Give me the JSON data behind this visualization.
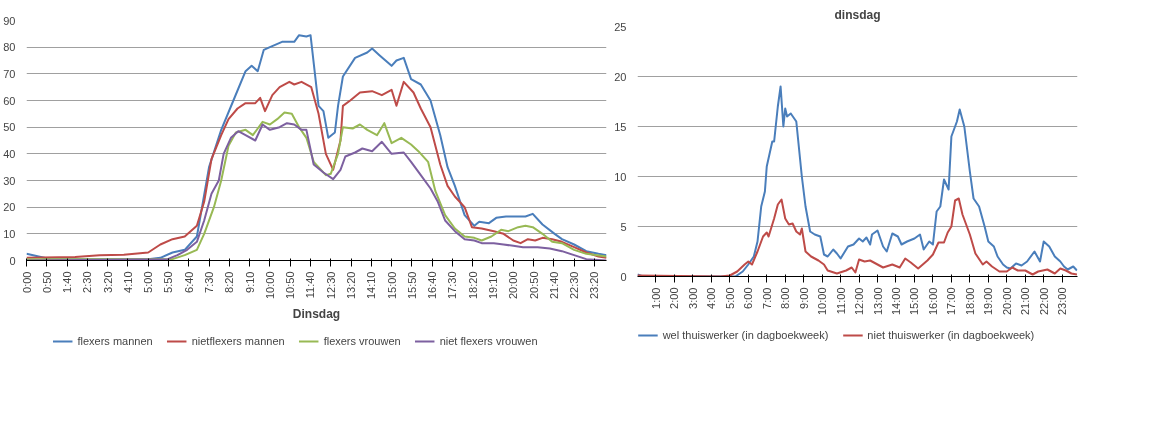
{
  "chart_data": [
    {
      "type": "line",
      "xlabel": "Dinsdag",
      "legend": "bottom",
      "grid": "y",
      "marker": "none",
      "line_style": "solid",
      "xlim": [
        0,
        23.83
      ],
      "ylim": [
        0,
        90
      ],
      "yticks": [
        0,
        10,
        20,
        30,
        40,
        50,
        60,
        70,
        80,
        90
      ],
      "xticks": [
        {
          "value": 0,
          "label": "0:00"
        },
        {
          "value": 0.8333,
          "label": "0:50"
        },
        {
          "value": 1.6667,
          "label": "1:40"
        },
        {
          "value": 2.5,
          "label": "2:30"
        },
        {
          "value": 3.3333,
          "label": "3:20"
        },
        {
          "value": 4.1667,
          "label": "4:10"
        },
        {
          "value": 5,
          "label": "5:00"
        },
        {
          "value": 5.8333,
          "label": "5:50"
        },
        {
          "value": 6.6667,
          "label": "6:40"
        },
        {
          "value": 7.5,
          "label": "7:30"
        },
        {
          "value": 8.3333,
          "label": "8:20"
        },
        {
          "value": 9.1667,
          "label": "9:10"
        },
        {
          "value": 10,
          "label": "10:00"
        },
        {
          "value": 10.8333,
          "label": "10:50"
        },
        {
          "value": 11.6667,
          "label": "11:40"
        },
        {
          "value": 12.5,
          "label": "12:30"
        },
        {
          "value": 13.3333,
          "label": "13:20"
        },
        {
          "value": 14.1667,
          "label": "14:10"
        },
        {
          "value": 15,
          "label": "15:00"
        },
        {
          "value": 15.8333,
          "label": "15:50"
        },
        {
          "value": 16.6667,
          "label": "16:40"
        },
        {
          "value": 17.5,
          "label": "17:30"
        },
        {
          "value": 18.3333,
          "label": "18:20"
        },
        {
          "value": 19.1667,
          "label": "19:10"
        },
        {
          "value": 20,
          "label": "20:00"
        },
        {
          "value": 20.8333,
          "label": "20:50"
        },
        {
          "value": 21.6667,
          "label": "21:40"
        },
        {
          "value": 22.5,
          "label": "22:30"
        },
        {
          "value": 23.3333,
          "label": "23:20"
        }
      ],
      "series": [
        {
          "name": "flexers mannen",
          "color": "#4a7ebb",
          "x": [
            0,
            0.5,
            1,
            5,
            5.5,
            6,
            6.5,
            7,
            7.5,
            8,
            8.5,
            9,
            9.25,
            9.5,
            9.75,
            10,
            10.5,
            11,
            11.2,
            11.5,
            11.67,
            12,
            12.2,
            12.4,
            12.67,
            12.8,
            13,
            13.5,
            14,
            14.2,
            14.5,
            15,
            15.2,
            15.5,
            15.8,
            16.2,
            16.6,
            17,
            17.3,
            17.6,
            18,
            18.4,
            18.6,
            19,
            19.3,
            19.7,
            20,
            20.5,
            20.8,
            21.2,
            21.7,
            22,
            22.5,
            23,
            23.5,
            23.83
          ],
          "values": [
            2.5,
            1.5,
            0.5,
            0.5,
            1,
            3,
            4,
            9,
            35,
            49,
            60,
            71,
            73,
            71,
            79,
            80,
            82,
            82,
            84.5,
            84,
            84.5,
            58,
            56,
            46,
            48,
            58,
            69,
            76,
            78,
            79.5,
            77,
            73,
            75,
            76,
            68,
            66,
            60,
            47,
            35,
            28,
            17,
            13,
            14.5,
            14,
            16,
            16.5,
            16.5,
            16.5,
            17.5,
            13.5,
            10,
            8,
            6,
            3.5,
            2.5,
            2
          ]
        },
        {
          "name": "nietflexers mannen",
          "color": "#be4b48",
          "x": [
            0,
            2,
            3,
            4,
            5,
            5.5,
            6,
            6.5,
            7,
            7.3,
            7.6,
            8,
            8.3,
            8.67,
            9,
            9.4,
            9.6,
            9.8,
            10.1,
            10.4,
            10.8,
            11,
            11.3,
            11.7,
            12,
            12.3,
            12.6,
            12.9,
            13,
            13.3,
            13.7,
            14.2,
            14.6,
            15,
            15.2,
            15.5,
            15.9,
            16.2,
            16.6,
            17,
            17.3,
            17.6,
            18,
            18.3,
            18.7,
            19.2,
            19.6,
            20,
            20.3,
            20.6,
            20.9,
            21.2,
            21.6,
            22,
            22.5,
            23,
            23.5,
            23.83
          ],
          "values": [
            1,
            1.3,
            2,
            2.2,
            3,
            6,
            8,
            9,
            13,
            22,
            38,
            47,
            53,
            57,
            59,
            59,
            61,
            56,
            62,
            65,
            67,
            66,
            67,
            65,
            55,
            40,
            34,
            45,
            58,
            60,
            63,
            63.5,
            62,
            64,
            58,
            67,
            63,
            57,
            50,
            36,
            28,
            24,
            20,
            12.5,
            12,
            11,
            10,
            7.5,
            6.5,
            8,
            7.5,
            8.5,
            8,
            7,
            5,
            3,
            1.5,
            1
          ]
        },
        {
          "name": "flexers vrouwen",
          "color": "#98b954",
          "x": [
            0,
            5,
            6,
            6.5,
            7,
            7.3,
            7.7,
            8,
            8.3,
            8.6,
            9,
            9.3,
            9.7,
            10,
            10.3,
            10.6,
            10.9,
            11.2,
            11.5,
            11.8,
            12.3,
            12.5,
            12.8,
            13,
            13.4,
            13.7,
            14,
            14.4,
            14.7,
            15,
            15.4,
            15.8,
            16.1,
            16.5,
            16.8,
            17.2,
            17.6,
            18,
            18.4,
            18.7,
            19.1,
            19.5,
            19.8,
            20.2,
            20.5,
            20.8,
            21.2,
            21.6,
            22,
            22.5,
            23,
            23.83
          ],
          "values": [
            0.5,
            0.5,
            0.5,
            2,
            4,
            10,
            20,
            30,
            43,
            48,
            49,
            47,
            52,
            51,
            53,
            55.5,
            55,
            50,
            46,
            37,
            32,
            32.5,
            40,
            50,
            49.5,
            51,
            49,
            47,
            51.5,
            44,
            46,
            43.5,
            41,
            37,
            26,
            17,
            12,
            9,
            8.5,
            7.5,
            9,
            11.5,
            11,
            12.5,
            13,
            12.5,
            10,
            7,
            6.5,
            4,
            2.5,
            1.5
          ]
        },
        {
          "name": "niet flexers vrouwen",
          "color": "#7d60a0",
          "x": [
            0,
            5.8,
            6.2,
            6.6,
            7,
            7.3,
            7.6,
            7.9,
            8.1,
            8.4,
            8.7,
            9,
            9.4,
            9.7,
            10,
            10.4,
            10.7,
            11,
            11.3,
            11.5,
            11.8,
            12.2,
            12.6,
            12.9,
            13.1,
            13.5,
            13.8,
            14.2,
            14.6,
            15,
            15.5,
            15.8,
            16.2,
            16.6,
            16.9,
            17.2,
            17.6,
            18,
            18.4,
            18.7,
            19.2,
            19.6,
            20,
            20.4,
            21,
            21.5,
            22,
            22.5,
            23,
            23.83
          ],
          "values": [
            0,
            0.5,
            2,
            4,
            7,
            15,
            25,
            30,
            40,
            46,
            48.5,
            47,
            45,
            51,
            49,
            50,
            51.5,
            51,
            49,
            49,
            36,
            33,
            30.5,
            34,
            39,
            40.5,
            42,
            41,
            44.5,
            40,
            40.5,
            37,
            32,
            27,
            22,
            15,
            11,
            8,
            7.5,
            6.5,
            6.5,
            6,
            5.5,
            5,
            5,
            4.5,
            3.5,
            2,
            0.5,
            0
          ]
        }
      ]
    },
    {
      "type": "line",
      "title": "dinsdag",
      "legend": "bottom",
      "grid": "y",
      "marker": "none",
      "line_style": "solid",
      "xlim": [
        0,
        23.83
      ],
      "ylim": [
        0,
        25
      ],
      "yticks": [
        0,
        5,
        10,
        15,
        20,
        25
      ],
      "xticks": [
        {
          "value": 1,
          "label": "1:00"
        },
        {
          "value": 2,
          "label": "2:00"
        },
        {
          "value": 3,
          "label": "3:00"
        },
        {
          "value": 4,
          "label": "4:00"
        },
        {
          "value": 5,
          "label": "5:00"
        },
        {
          "value": 6,
          "label": "6:00"
        },
        {
          "value": 7,
          "label": "7:00"
        },
        {
          "value": 8,
          "label": "8:00"
        },
        {
          "value": 9,
          "label": "9:00"
        },
        {
          "value": 10,
          "label": "10:00"
        },
        {
          "value": 11,
          "label": "11:00"
        },
        {
          "value": 12,
          "label": "12:00"
        },
        {
          "value": 13,
          "label": "13:00"
        },
        {
          "value": 14,
          "label": "14:00"
        },
        {
          "value": 15,
          "label": "15:00"
        },
        {
          "value": 16,
          "label": "16:00"
        },
        {
          "value": 17,
          "label": "17:00"
        },
        {
          "value": 18,
          "label": "18:00"
        },
        {
          "value": 19,
          "label": "19:00"
        },
        {
          "value": 20,
          "label": "20:00"
        },
        {
          "value": 21,
          "label": "21:00"
        },
        {
          "value": 22,
          "label": "22:00"
        },
        {
          "value": 23,
          "label": "23:00"
        }
      ],
      "series": [
        {
          "name": "wel thuiswerker (in dagboekweek)",
          "color": "#4a7ebb",
          "x": [
            0,
            0.3,
            5,
            5.3,
            5.7,
            6,
            6.3,
            6.5,
            6.7,
            6.9,
            7,
            7.3,
            7.4,
            7.6,
            7.75,
            7.9,
            8,
            8.1,
            8.3,
            8.6,
            8.9,
            9.1,
            9.35,
            9.6,
            9.9,
            10.1,
            10.3,
            10.6,
            10.8,
            11,
            11.4,
            11.7,
            12,
            12.2,
            12.4,
            12.6,
            12.7,
            13,
            13.3,
            13.5,
            13.8,
            14.1,
            14.3,
            14.6,
            15,
            15.3,
            15.5,
            15.8,
            16,
            16.2,
            16.4,
            16.6,
            16.85,
            17,
            17.3,
            17.45,
            17.7,
            18,
            18.2,
            18.5,
            18.8,
            19,
            19.3,
            19.5,
            19.8,
            20,
            20.2,
            20.5,
            20.8,
            21.1,
            21.5,
            21.8,
            22,
            22.3,
            22.6,
            22.9,
            23.1,
            23.3,
            23.6,
            23.8
          ],
          "values": [
            0.2,
            0,
            0,
            0,
            0.5,
            1.2,
            2,
            3.5,
            7,
            8.5,
            11,
            13.5,
            13.5,
            17,
            19,
            15,
            16.8,
            16,
            16.3,
            15.5,
            10,
            7,
            4.5,
            4.2,
            4,
            2.2,
            2,
            2.7,
            2.3,
            1.8,
            3,
            3.2,
            3.8,
            3.5,
            3.9,
            3.2,
            4.2,
            4.6,
            3,
            2.5,
            4.3,
            4,
            3.2,
            3.5,
            3.8,
            4.2,
            2.7,
            3.5,
            3.2,
            6.5,
            7,
            9.7,
            8.7,
            14,
            15.5,
            16.7,
            15,
            10.5,
            7.8,
            7,
            5,
            3.5,
            3,
            2,
            1.2,
            0.9,
            0.8,
            1.3,
            1.1,
            1.5,
            2.5,
            1.5,
            3.5,
            3,
            2,
            1.5,
            1,
            0.7,
            1,
            0.6
          ]
        },
        {
          "name": "niet thuiswerker (in dagboekweek)",
          "color": "#be4b48",
          "x": [
            0,
            4.5,
            5,
            5.4,
            5.8,
            6,
            6.2,
            6.5,
            6.8,
            7,
            7.1,
            7.4,
            7.6,
            7.8,
            8,
            8.2,
            8.4,
            8.6,
            8.8,
            8.9,
            9.1,
            9.4,
            9.8,
            10.1,
            10.3,
            10.8,
            11.3,
            11.6,
            11.8,
            12,
            12.3,
            12.6,
            13,
            13.3,
            13.8,
            14.2,
            14.5,
            14.8,
            15.2,
            15.7,
            16,
            16.3,
            16.6,
            16.8,
            17,
            17.2,
            17.4,
            17.6,
            18,
            18.3,
            18.7,
            18.9,
            19.2,
            19.6,
            20,
            20.3,
            20.6,
            21,
            21.4,
            21.7,
            22.2,
            22.6,
            22.9,
            23.2,
            23.5,
            23.8
          ],
          "values": [
            0.1,
            0,
            0.1,
            0.5,
            1.2,
            1.5,
            1.2,
            2.5,
            4,
            4.4,
            4,
            5.8,
            7.2,
            7.7,
            5.8,
            5.2,
            5.3,
            4.5,
            4.2,
            4.8,
            2.5,
            2,
            1.6,
            1.2,
            0.6,
            0.3,
            0.6,
            0.9,
            0.4,
            1.7,
            1.5,
            1.6,
            1.2,
            0.9,
            1.2,
            0.9,
            1.8,
            1.4,
            0.8,
            1.6,
            2.2,
            3.4,
            3.4,
            4.4,
            5,
            7.6,
            7.8,
            6.2,
            4.2,
            2.3,
            1.2,
            1.5,
            1,
            0.5,
            0.5,
            0.9,
            0.6,
            0.6,
            0.2,
            0.5,
            0.7,
            0.3,
            0.8,
            0.6,
            0.3,
            0.2
          ]
        }
      ]
    }
  ]
}
